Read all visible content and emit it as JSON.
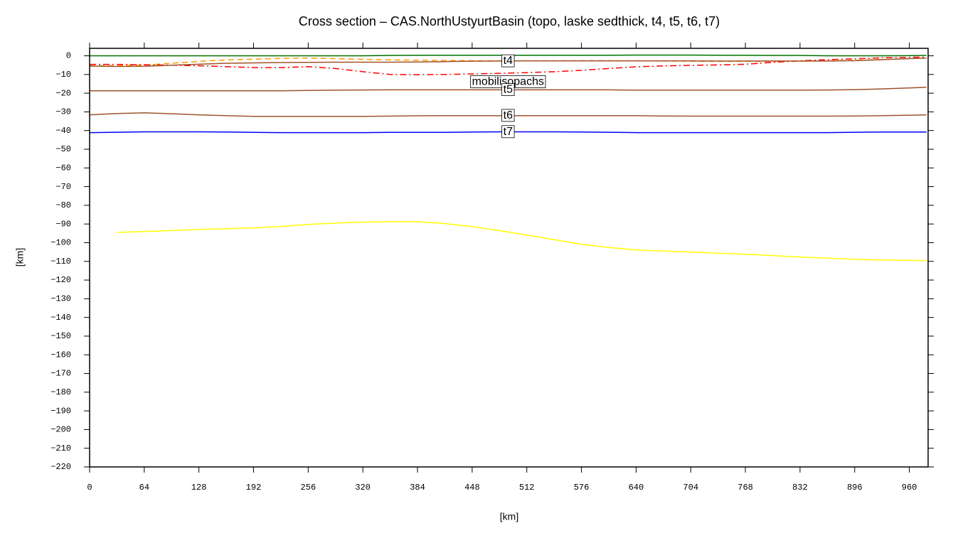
{
  "chart_data": {
    "type": "line",
    "title": "Cross section – CAS.NorthUstyurtBasin (topo, laske sedthick, t4, t5, t6, t7)",
    "x_label": "[km]",
    "y_label": "[km]",
    "x": [
      0,
      32,
      64,
      96,
      128,
      160,
      192,
      224,
      256,
      288,
      320,
      352,
      384,
      416,
      448,
      480,
      512,
      544,
      576,
      608,
      640,
      672,
      704,
      736,
      768,
      800,
      832,
      864,
      896,
      928,
      960,
      980
    ],
    "series": [
      {
        "color": "#007000",
        "dash": "solid",
        "values": [
          0,
          0,
          0,
          0,
          0,
          0,
          0,
          0,
          0,
          0,
          0,
          0.2,
          0.3,
          0.3,
          0.3,
          0.3,
          0.3,
          0.3,
          0.3,
          0.3,
          0.4,
          0.4,
          0.4,
          0.3,
          0.3,
          0.2,
          0.2,
          0,
          0,
          0,
          0.1,
          0.2
        ]
      },
      {
        "color": "#ff9900",
        "dash": "dashed",
        "values": [
          -5.3,
          -5.3,
          -5,
          -4,
          -3,
          -2.2,
          -1.8,
          -1.4,
          -1.2,
          -1.5,
          -1.9,
          -2.2,
          -2.4,
          -2.5,
          -2.6,
          -2.7,
          -2.7,
          -2.7,
          -2.6,
          -2.6,
          -2.7,
          -2.8,
          -2.9,
          -3,
          -3,
          -3,
          -2.9,
          -2.7,
          -2.4,
          -2,
          -1.5,
          -1.2
        ]
      },
      {
        "name": "mobilisopachs",
        "color": "#ff0000",
        "dash": "dashdot",
        "values": [
          -4.6,
          -4.6,
          -4.8,
          -5,
          -5.3,
          -5.8,
          -6.3,
          -6.3,
          -5.8,
          -6.8,
          -8.5,
          -10,
          -10.1,
          -10,
          -9.7,
          -9.4,
          -9,
          -8.5,
          -7.8,
          -6.8,
          -5.9,
          -5.4,
          -5.1,
          -4.9,
          -4.5,
          -3.5,
          -2.7,
          -2.1,
          -1.6,
          -1.1,
          -0.8,
          -0.7
        ]
      },
      {
        "name": "t4",
        "color": "#a0522d",
        "dash": "solid",
        "values": [
          -5.5,
          -5.7,
          -5.6,
          -5,
          -4.5,
          -4,
          -3.8,
          -3.6,
          -3.5,
          -3.4,
          -3.4,
          -3.4,
          -3.3,
          -3.1,
          -2.9,
          -2.8,
          -2.7,
          -2.7,
          -2.7,
          -2.7,
          -2.7,
          -2.7,
          -2.7,
          -2.8,
          -2.8,
          -2.8,
          -2.8,
          -2.8,
          -2.6,
          -2.1,
          -1.5,
          -1.2
        ]
      },
      {
        "name": "t5",
        "color": "#a0522d",
        "dash": "solid",
        "values": [
          -18.7,
          -18.7,
          -18.7,
          -18.7,
          -18.7,
          -18.7,
          -18.7,
          -18.7,
          -18.5,
          -18.4,
          -18.3,
          -18.2,
          -18.2,
          -18.2,
          -18.2,
          -18.2,
          -18.2,
          -18.2,
          -18.2,
          -18.2,
          -18.4,
          -18.4,
          -18.4,
          -18.4,
          -18.4,
          -18.4,
          -18.4,
          -18.3,
          -18.1,
          -17.7,
          -17.2,
          -16.8
        ]
      },
      {
        "name": "t6",
        "color": "#a0522d",
        "dash": "solid",
        "values": [
          -31.6,
          -30.9,
          -30.5,
          -31,
          -31.6,
          -32,
          -32.4,
          -32.4,
          -32.4,
          -32.4,
          -32.4,
          -32.3,
          -32.1,
          -32,
          -32,
          -32,
          -32,
          -32,
          -32,
          -32,
          -32,
          -32.2,
          -32.3,
          -32.3,
          -32.3,
          -32.3,
          -32.3,
          -32.3,
          -32.2,
          -32,
          -31.8,
          -31.6
        ]
      },
      {
        "name": "t7",
        "color": "#0000ff",
        "dash": "solid",
        "values": [
          -41.1,
          -40.9,
          -40.7,
          -40.7,
          -40.7,
          -40.8,
          -41,
          -41.1,
          -41.1,
          -41.1,
          -41.1,
          -41,
          -41,
          -41,
          -40.8,
          -40.7,
          -40.7,
          -40.7,
          -40.8,
          -40.9,
          -41.1,
          -41.1,
          -41.1,
          -41.1,
          -41.1,
          -41.1,
          -41.1,
          -41.1,
          -40.9,
          -40.8,
          -40.8,
          -40.8
        ]
      },
      {
        "color": "#ffff00",
        "dash": "solid",
        "values": [
          null,
          -94.5,
          -94,
          -93.5,
          -92.9,
          -92.5,
          -92.1,
          -91.3,
          -90.2,
          -89.5,
          -89,
          -88.8,
          -88.8,
          -89.8,
          -91.4,
          -93.6,
          -95.9,
          -98.4,
          -100.9,
          -102.6,
          -103.9,
          -104.5,
          -105,
          -105.6,
          -106.2,
          -106.9,
          -107.7,
          -108.3,
          -108.9,
          -109.3,
          -109.5,
          -109.6
        ]
      }
    ],
    "xlim": [
      0,
      982
    ],
    "ylim": [
      -220,
      4
    ],
    "xticks": [
      0,
      64,
      128,
      192,
      256,
      320,
      384,
      448,
      512,
      576,
      640,
      704,
      768,
      832,
      896,
      960
    ],
    "yticks": [
      0,
      {
        "value": -10,
        "label": "−10"
      },
      {
        "value": -20,
        "label": "−20"
      },
      {
        "value": -30,
        "label": "−30"
      },
      {
        "value": -40,
        "label": "−40"
      },
      {
        "value": -50,
        "label": "−50"
      },
      {
        "value": -60,
        "label": "−60"
      },
      {
        "value": -70,
        "label": "−70"
      },
      {
        "value": -80,
        "label": "−80"
      },
      {
        "value": -90,
        "label": "−90"
      },
      {
        "value": -100,
        "label": "−100"
      },
      {
        "value": -110,
        "label": "−110"
      },
      {
        "value": -120,
        "label": "−120"
      },
      {
        "value": -130,
        "label": "−130"
      },
      {
        "value": -140,
        "label": "−140"
      },
      {
        "value": -150,
        "label": "−150"
      },
      {
        "value": -160,
        "label": "−160"
      },
      {
        "value": -170,
        "label": "−170"
      },
      {
        "value": -180,
        "label": "−180"
      },
      {
        "value": -190,
        "label": "−190"
      },
      {
        "value": -200,
        "label": "−200"
      },
      {
        "value": -210,
        "label": "−210"
      },
      {
        "value": -220,
        "label": "−220"
      }
    ],
    "grid": false
  }
}
